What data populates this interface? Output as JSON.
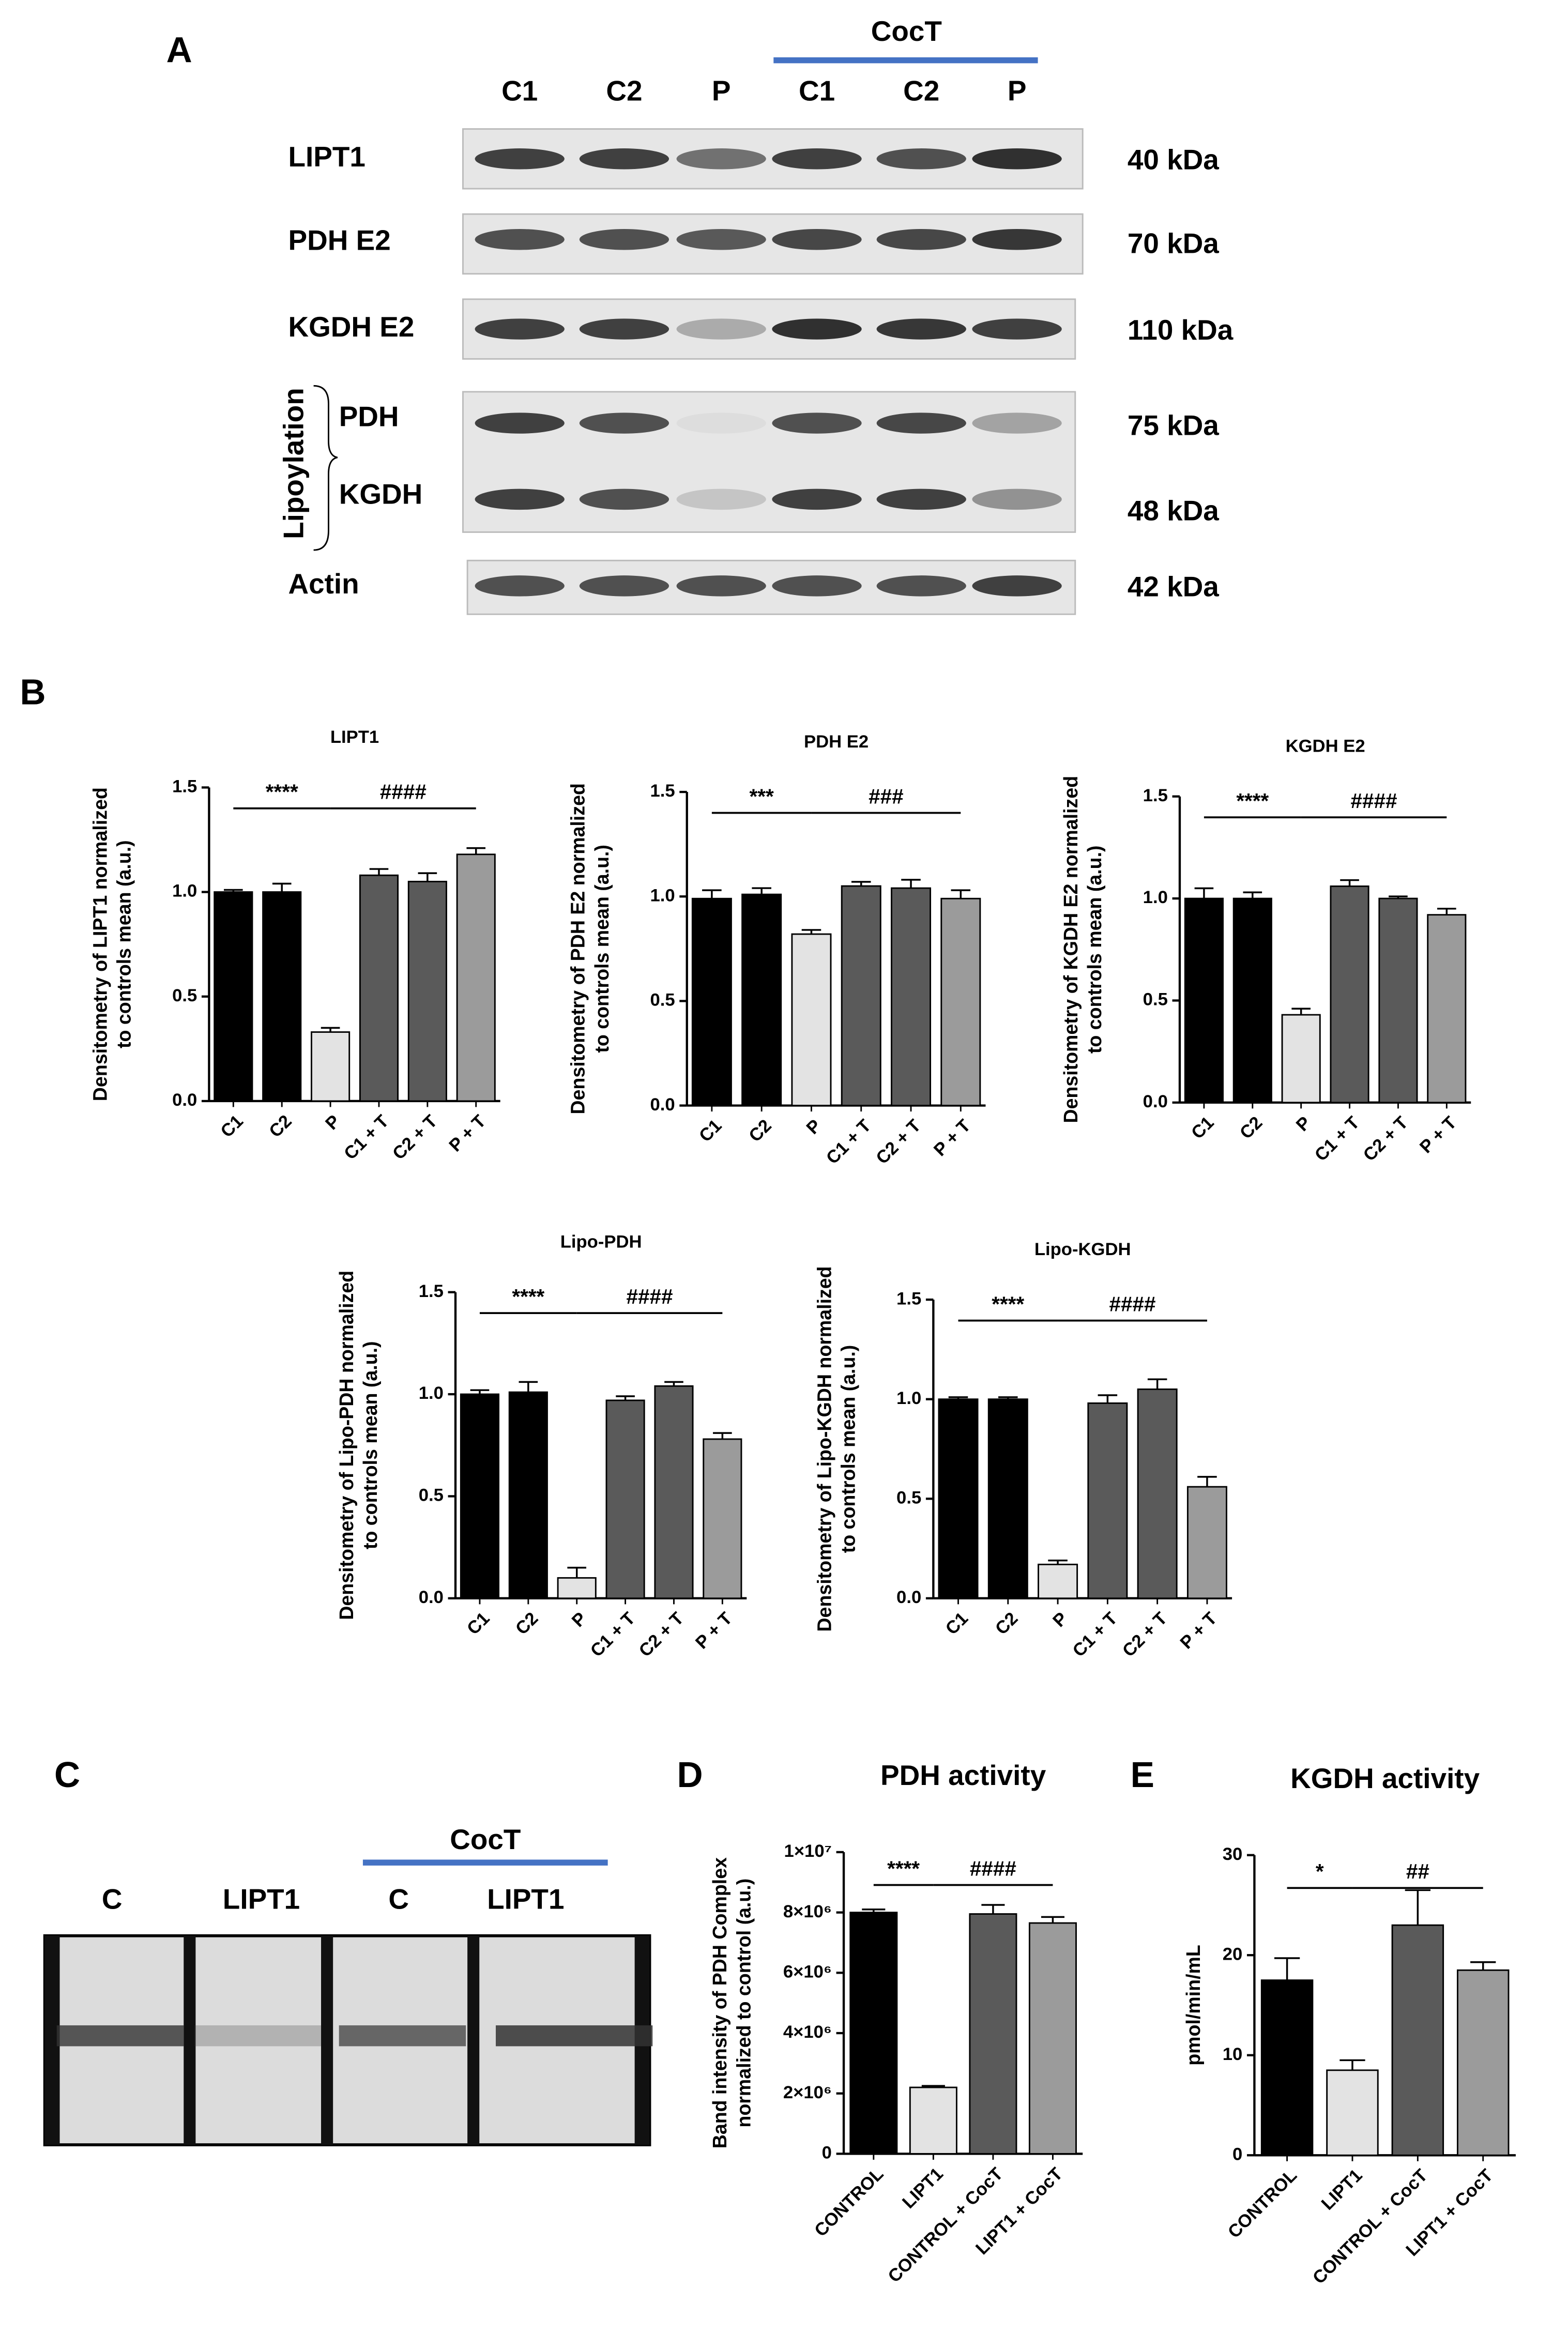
{
  "panel_labels": [
    "A",
    "B",
    "C",
    "D",
    "E"
  ],
  "blot_a": {
    "group_label": "CocT",
    "lanes": [
      "C1",
      "C2",
      "P",
      "C1",
      "C2",
      "P"
    ],
    "rows": [
      {
        "label": "LIPT1",
        "size": "40 kDa"
      },
      {
        "label": "PDH E2",
        "size": "70 kDa"
      },
      {
        "label": "KGDH E2",
        "size": "110 kDa"
      },
      {
        "label": "Actin",
        "size": "42 kDa"
      }
    ],
    "lipoylation": {
      "label": "Lipoylation",
      "rows": [
        {
          "label": "PDH",
          "size": "75 kDa"
        },
        {
          "label": "KGDH",
          "size": "48 kDa"
        }
      ]
    }
  },
  "gel_c": {
    "group_label": "CocT",
    "lanes": [
      "C",
      "LIPT1",
      "C",
      "LIPT1"
    ]
  },
  "chart_data": [
    {
      "type": "bar",
      "title": "LIPT1",
      "ylabel": [
        "Densitometry of LIPT1 normalized",
        "to controls mean (a.u.)"
      ],
      "categories": [
        "C1",
        "C2",
        "P",
        "C1 + T",
        "C2 + T",
        "P + T"
      ],
      "values": [
        1.0,
        1.0,
        0.33,
        1.08,
        1.05,
        1.18
      ],
      "errors": [
        0.01,
        0.04,
        0.02,
        0.03,
        0.04,
        0.03
      ],
      "colors": [
        "#000000",
        "#000000",
        "#e3e3e3",
        "#5a5a5a",
        "#5a5a5a",
        "#9b9b9b"
      ],
      "ylim": [
        0,
        1.5
      ],
      "yticks": [
        {
          "value": 0,
          "label": "0.0"
        },
        {
          "value": 0.5,
          "label": "0.5"
        },
        {
          "value": 1,
          "label": "1.0"
        },
        {
          "value": 1.5,
          "label": "1.5"
        }
      ],
      "significance": [
        "****",
        "####"
      ]
    },
    {
      "type": "bar",
      "title": "PDH E2",
      "ylabel": [
        "Densitometry of PDH E2 normalized",
        "to controls mean (a.u.)"
      ],
      "categories": [
        "C1",
        "C2",
        "P",
        "C1 + T",
        "C2 + T",
        "P + T"
      ],
      "values": [
        0.99,
        1.01,
        0.82,
        1.05,
        1.04,
        0.99
      ],
      "errors": [
        0.04,
        0.03,
        0.02,
        0.02,
        0.04,
        0.04
      ],
      "colors": [
        "#000000",
        "#000000",
        "#e3e3e3",
        "#5a5a5a",
        "#5a5a5a",
        "#9b9b9b"
      ],
      "ylim": [
        0,
        1.5
      ],
      "yticks": [
        {
          "value": 0,
          "label": "0.0"
        },
        {
          "value": 0.5,
          "label": "0.5"
        },
        {
          "value": 1,
          "label": "1.0"
        },
        {
          "value": 1.5,
          "label": "1.5"
        }
      ],
      "significance": [
        "***",
        "###"
      ]
    },
    {
      "type": "bar",
      "title": "KGDH E2",
      "ylabel": [
        "Densitometry of KGDH E2 normalized",
        "to controls mean (a.u.)"
      ],
      "categories": [
        "C1",
        "C2",
        "P",
        "C1 + T",
        "C2 + T",
        "P + T"
      ],
      "values": [
        1.0,
        1.0,
        0.43,
        1.06,
        1.0,
        0.92
      ],
      "errors": [
        0.05,
        0.03,
        0.03,
        0.03,
        0.01,
        0.03
      ],
      "colors": [
        "#000000",
        "#000000",
        "#e3e3e3",
        "#5a5a5a",
        "#5a5a5a",
        "#9b9b9b"
      ],
      "ylim": [
        0,
        1.5
      ],
      "yticks": [
        {
          "value": 0,
          "label": "0.0"
        },
        {
          "value": 0.5,
          "label": "0.5"
        },
        {
          "value": 1,
          "label": "1.0"
        },
        {
          "value": 1.5,
          "label": "1.5"
        }
      ],
      "significance": [
        "****",
        "####"
      ]
    },
    {
      "type": "bar",
      "title": "Lipo-PDH",
      "ylabel": [
        "Densitometry of Lipo-PDH normalized",
        "to controls mean (a.u.)"
      ],
      "categories": [
        "C1",
        "C2",
        "P",
        "C1 + T",
        "C2 + T",
        "P + T"
      ],
      "values": [
        1.0,
        1.01,
        0.1,
        0.97,
        1.04,
        0.78
      ],
      "errors": [
        0.02,
        0.05,
        0.05,
        0.02,
        0.02,
        0.03
      ],
      "colors": [
        "#000000",
        "#000000",
        "#e3e3e3",
        "#5a5a5a",
        "#5a5a5a",
        "#9b9b9b"
      ],
      "ylim": [
        0,
        1.5
      ],
      "yticks": [
        {
          "value": 0,
          "label": "0.0"
        },
        {
          "value": 0.5,
          "label": "0.5"
        },
        {
          "value": 1,
          "label": "1.0"
        },
        {
          "value": 1.5,
          "label": "1.5"
        }
      ],
      "significance": [
        "****",
        "####"
      ]
    },
    {
      "type": "bar",
      "title": "Lipo-KGDH",
      "ylabel": [
        "Densitometry of Lipo-KGDH normalized",
        "to controls mean (a.u.)"
      ],
      "categories": [
        "C1",
        "C2",
        "P",
        "C1 + T",
        "C2 + T",
        "P + T"
      ],
      "values": [
        1.0,
        1.0,
        0.17,
        0.98,
        1.05,
        0.56
      ],
      "errors": [
        0.01,
        0.01,
        0.02,
        0.04,
        0.05,
        0.05
      ],
      "colors": [
        "#000000",
        "#000000",
        "#e3e3e3",
        "#5a5a5a",
        "#5a5a5a",
        "#9b9b9b"
      ],
      "ylim": [
        0,
        1.5
      ],
      "yticks": [
        {
          "value": 0,
          "label": "0.0"
        },
        {
          "value": 0.5,
          "label": "0.5"
        },
        {
          "value": 1,
          "label": "1.0"
        },
        {
          "value": 1.5,
          "label": "1.5"
        }
      ],
      "significance": [
        "****",
        "####"
      ]
    },
    {
      "type": "bar",
      "title": "PDH activity",
      "ylabel": [
        "Band intensity of PDH Complex",
        "normalized to control (a.u.)"
      ],
      "categories": [
        "CONTROL",
        "LIPT1",
        "CONTROL + CocT",
        "LIPT1 + CocT"
      ],
      "values": [
        8000000,
        2200000,
        7950000,
        7650000
      ],
      "errors": [
        100000,
        50000,
        300000,
        200000
      ],
      "colors": [
        "#000000",
        "#e3e3e3",
        "#5a5a5a",
        "#9b9b9b"
      ],
      "ylim": [
        0,
        10000000
      ],
      "yticks": [
        0,
        {
          "value": 2000000,
          "label": "2×10⁶"
        },
        {
          "value": 4000000,
          "label": "4×10⁶"
        },
        {
          "value": 6000000,
          "label": "6×10⁶"
        },
        {
          "value": 8000000,
          "label": "8×10⁶"
        },
        {
          "value": 10000000,
          "label": "1×10⁷"
        }
      ],
      "significance": [
        "****",
        "####"
      ]
    },
    {
      "type": "bar",
      "title": "KGDH activity",
      "ylabel": [
        "pmol/min/mL"
      ],
      "categories": [
        "CONTROL",
        "LIPT1",
        "CONTROL + CocT",
        "LIPT1 + CocT"
      ],
      "values": [
        17.5,
        8.5,
        23,
        18.5
      ],
      "errors": [
        2.2,
        1.0,
        3.5,
        0.8
      ],
      "colors": [
        "#000000",
        "#e3e3e3",
        "#5a5a5a",
        "#9b9b9b"
      ],
      "ylim": [
        0,
        30
      ],
      "yticks": [
        0,
        10,
        20,
        30
      ],
      "significance": [
        "*",
        "##"
      ]
    }
  ]
}
